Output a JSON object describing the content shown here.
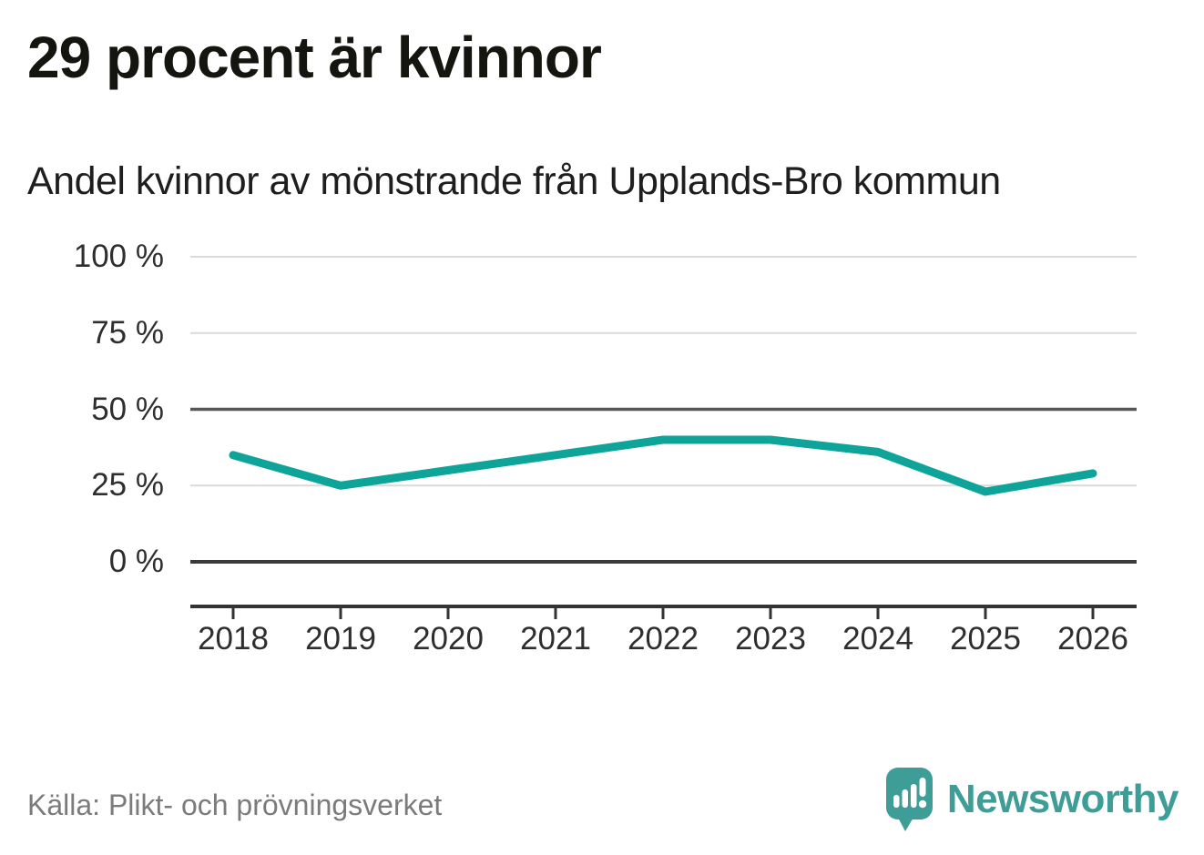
{
  "title": "29 procent är kvinnor",
  "subtitle": "Andel kvinnor av mönstrande från Upplands-Bro kommun",
  "source": "Källa: Plikt- och prövningsverket",
  "brand": {
    "name": "Newsworthy",
    "logo_icon": "speech-bubble-bar-chart-exclamation-icon",
    "color": "#3f9d98"
  },
  "colors": {
    "line": "#0fa49a",
    "grid_light": "#dadada",
    "grid_mid": "#575757",
    "grid_zero": "#3a3a3a",
    "axis": "#333333",
    "label_text": "#2e2e2e",
    "title_text": "#15150f",
    "source_text": "#7b7b7b"
  },
  "chart_data": {
    "type": "line",
    "title": "29 procent är kvinnor",
    "subtitle": "Andel kvinnor av mönstrande från Upplands-Bro kommun",
    "categories": [
      2018,
      2019,
      2020,
      2021,
      2022,
      2023,
      2024,
      2025,
      2026
    ],
    "series": [
      {
        "name": "Andel kvinnor av mönstrande",
        "values": [
          35,
          25,
          30,
          35,
          40,
          40,
          36,
          23,
          29
        ]
      }
    ],
    "unit": "%",
    "ylim": [
      0,
      100
    ],
    "yticks": [
      0,
      25,
      50,
      75,
      100
    ],
    "ytick_labels": [
      "0 %",
      "25 %",
      "50 %",
      "75 %",
      "100 %"
    ],
    "xlabel": "",
    "ylabel": "",
    "grid": "horizontal",
    "reference_gridline": 50,
    "legend": "none",
    "latest_value_label": "29"
  }
}
